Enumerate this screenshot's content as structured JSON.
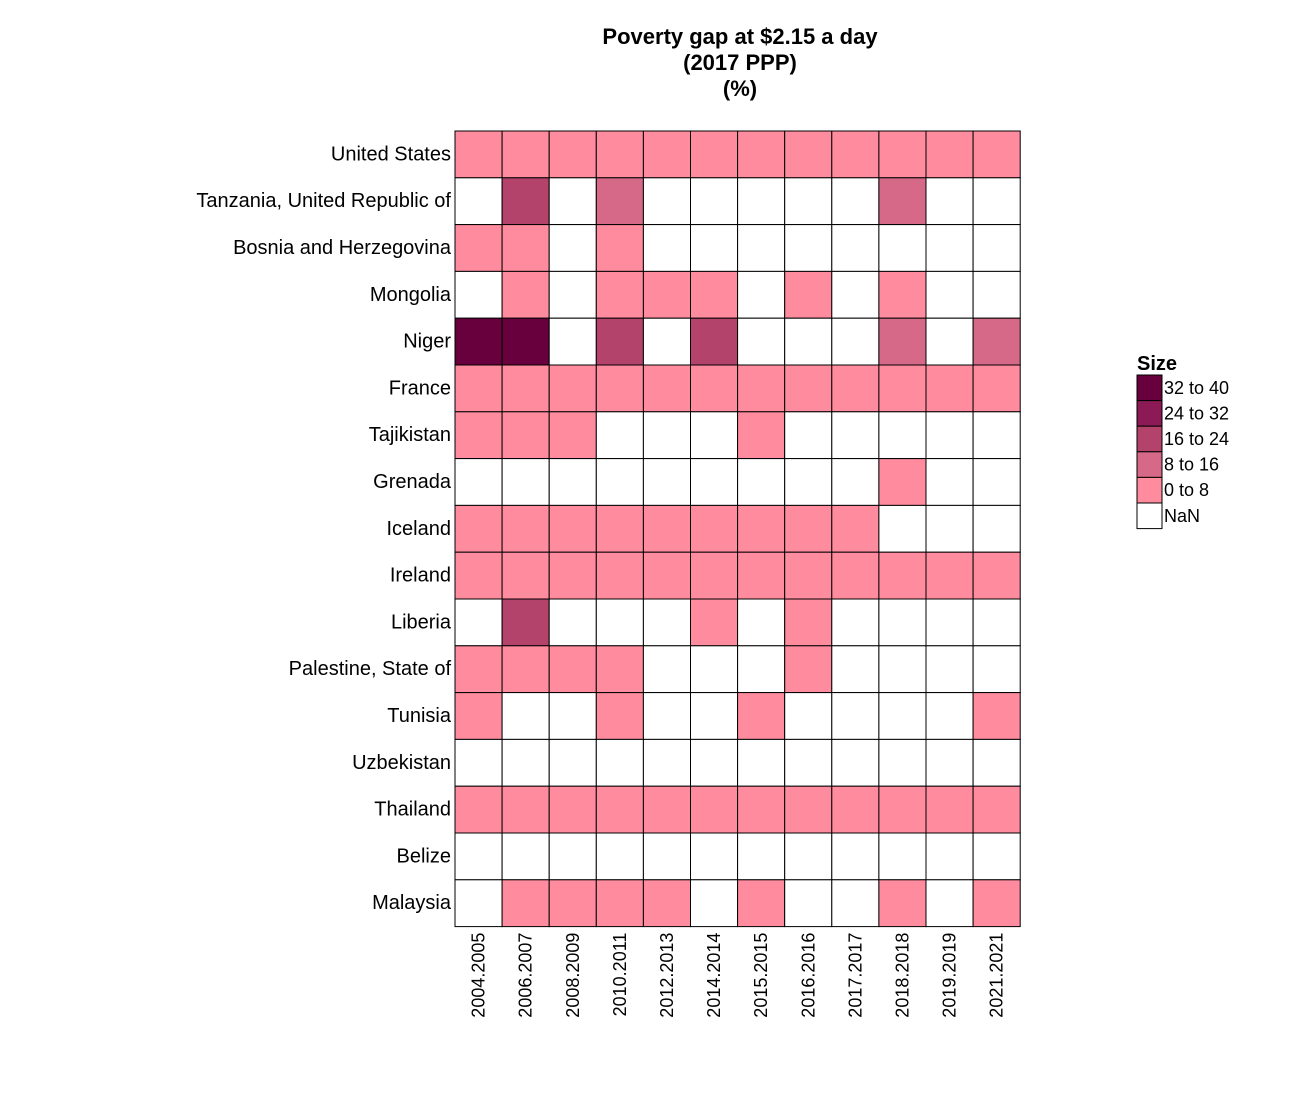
{
  "chart_data": {
    "type": "heatmap",
    "title": [
      "Poverty gap at $2.15 a day",
      "(2017 PPP)",
      "(%)"
    ],
    "x": [
      "2004.2005",
      "2006.2007",
      "2008.2009",
      "2010.2011",
      "2012.2013",
      "2014.2014",
      "2015.2015",
      "2016.2016",
      "2017.2017",
      "2018.2018",
      "2019.2019",
      "2021.2021"
    ],
    "y": [
      "United States",
      "Tanzania, United Republic of",
      "Bosnia and Herzegovina",
      "Mongolia",
      "Niger",
      "France",
      "Tajikistan",
      "Grenada",
      "Iceland",
      "Ireland",
      "Liberia",
      "Palestine, State of",
      "Tunisia",
      "Uzbekistan",
      "Thailand",
      "Belize",
      "Malaysia"
    ],
    "values": [
      [
        1,
        1,
        1,
        1,
        1,
        1,
        1,
        1,
        1,
        1,
        1,
        1
      ],
      [
        null,
        18,
        null,
        12,
        null,
        null,
        null,
        null,
        null,
        12,
        null,
        null
      ],
      [
        1,
        1,
        null,
        1,
        null,
        null,
        null,
        null,
        null,
        null,
        null,
        null
      ],
      [
        null,
        1,
        null,
        1,
        1,
        1,
        null,
        1,
        null,
        1,
        null,
        null
      ],
      [
        36,
        36,
        null,
        18,
        null,
        18,
        null,
        null,
        null,
        12,
        null,
        12
      ],
      [
        1,
        1,
        1,
        1,
        1,
        1,
        1,
        1,
        1,
        1,
        1,
        1
      ],
      [
        1,
        1,
        1,
        null,
        null,
        null,
        1,
        null,
        null,
        null,
        null,
        null
      ],
      [
        null,
        null,
        null,
        null,
        null,
        null,
        null,
        null,
        null,
        1,
        null,
        null
      ],
      [
        1,
        1,
        1,
        1,
        1,
        1,
        1,
        1,
        1,
        null,
        null,
        null
      ],
      [
        1,
        1,
        1,
        1,
        1,
        1,
        1,
        1,
        1,
        1,
        1,
        1
      ],
      [
        null,
        18,
        null,
        null,
        null,
        1,
        null,
        1,
        null,
        null,
        null,
        null
      ],
      [
        1,
        1,
        1,
        1,
        null,
        null,
        null,
        1,
        null,
        null,
        null,
        null
      ],
      [
        1,
        null,
        null,
        1,
        null,
        null,
        1,
        null,
        null,
        null,
        null,
        1
      ],
      [
        null,
        null,
        null,
        null,
        null,
        null,
        null,
        null,
        null,
        null,
        null,
        null
      ],
      [
        1,
        1,
        1,
        1,
        1,
        1,
        1,
        1,
        1,
        1,
        1,
        1
      ],
      [
        null,
        null,
        null,
        null,
        null,
        null,
        null,
        null,
        null,
        null,
        null,
        null
      ],
      [
        null,
        1,
        1,
        1,
        1,
        null,
        1,
        null,
        null,
        1,
        null,
        1
      ]
    ],
    "legend": {
      "title": "Size",
      "placement": "right",
      "bins": [
        {
          "label": "32 to 40",
          "min": 32,
          "max": 40,
          "color": "#67003c"
        },
        {
          "label": "24 to 32",
          "min": 24,
          "max": 32,
          "color": "#8b1a56"
        },
        {
          "label": "16 to 24",
          "min": 16,
          "max": 24,
          "color": "#b3436b"
        },
        {
          "label": "8 to 16",
          "min": 8,
          "max": 16,
          "color": "#d66987"
        },
        {
          "label": "0 to 8",
          "min": 0,
          "max": 8,
          "color": "#ff8c9e"
        },
        {
          "label": "NaN",
          "min": null,
          "max": null,
          "color": "#ffffff"
        }
      ]
    }
  }
}
